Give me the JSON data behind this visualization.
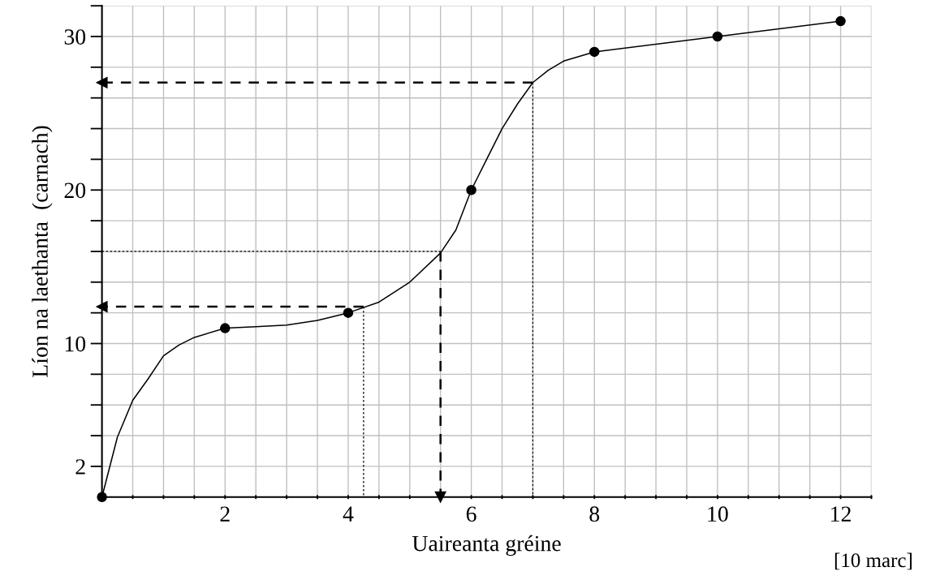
{
  "chart_data": {
    "type": "line",
    "xlabel": "Uaireanta gréine",
    "ylabel": "Líon na laethanta  (carnach)",
    "annotations": [
      "[10 marc]"
    ],
    "xlim": [
      0,
      12.5
    ],
    "ylim": [
      0,
      32
    ],
    "xticks": [
      {
        "value": 0.5,
        "label": null
      },
      {
        "value": 1,
        "label": null
      },
      {
        "value": 1.5,
        "label": null
      },
      2,
      {
        "value": 2.5,
        "label": null
      },
      {
        "value": 3,
        "label": null
      },
      {
        "value": 3.5,
        "label": null
      },
      4,
      {
        "value": 4.5,
        "label": null
      },
      {
        "value": 5,
        "label": null
      },
      {
        "value": 5.5,
        "label": null
      },
      6,
      {
        "value": 6.5,
        "label": null
      },
      {
        "value": 7,
        "label": null
      },
      {
        "value": 7.5,
        "label": null
      },
      8,
      {
        "value": 8.5,
        "label": null
      },
      {
        "value": 9,
        "label": null
      },
      {
        "value": 9.5,
        "label": null
      },
      10,
      {
        "value": 10.5,
        "label": null
      },
      {
        "value": 11,
        "label": null
      },
      {
        "value": 11.5,
        "label": null
      },
      12,
      {
        "value": 12.5,
        "label": null
      }
    ],
    "yticks": [
      2,
      {
        "value": 4,
        "label": null
      },
      {
        "value": 6,
        "label": null
      },
      {
        "value": 8,
        "label": null
      },
      10,
      {
        "value": 12,
        "label": null
      },
      {
        "value": 14,
        "label": null
      },
      {
        "value": 16,
        "label": null
      },
      {
        "value": 18,
        "label": null
      },
      20,
      {
        "value": 22,
        "label": null
      },
      {
        "value": 24,
        "label": null
      },
      {
        "value": 26,
        "label": null
      },
      {
        "value": 28,
        "label": null
      },
      30,
      {
        "value": 32,
        "label": null
      }
    ],
    "grid": true,
    "series": [
      {
        "color": "#000000",
        "marker": "none",
        "line_style": "solid",
        "x": [
          0,
          0.25,
          0.5,
          0.75,
          1,
          1.25,
          1.5,
          2,
          2.5,
          3,
          3.5,
          4,
          4.5,
          5,
          5.5,
          5.75,
          6,
          6.25,
          6.5,
          6.75,
          7,
          7.25,
          7.5,
          8,
          10,
          12
        ],
        "values": [
          0,
          3.9,
          6.3,
          7.7,
          9.2,
          9.9,
          10.4,
          11,
          11.1,
          11.2,
          11.5,
          12,
          12.7,
          14,
          15.9,
          17.4,
          20,
          22,
          24,
          25.6,
          27,
          27.8,
          28.4,
          29,
          30,
          31
        ]
      },
      {
        "type": "scatter",
        "color": "#000000",
        "marker": "circle",
        "x": [
          0,
          2,
          4,
          6,
          8,
          10,
          12
        ],
        "values": [
          0,
          11,
          12,
          20,
          29,
          30,
          31
        ]
      },
      {
        "color": "#000000",
        "marker": "triangle",
        "line_style": "dashed",
        "x": [
          7,
          0
        ],
        "values": [
          27,
          27
        ]
      },
      {
        "color": "#000000",
        "marker": "none",
        "line_style": "dotted",
        "x": [
          7,
          7
        ],
        "values": [
          27,
          0
        ]
      },
      {
        "color": "#000000",
        "marker": "triangle",
        "line_style": "dashed",
        "x": [
          4.25,
          0
        ],
        "values": [
          12.4,
          12.4
        ]
      },
      {
        "color": "#000000",
        "marker": "none",
        "line_style": "dotted",
        "x": [
          4.25,
          4.25
        ],
        "values": [
          12.4,
          0
        ]
      },
      {
        "color": "#000000",
        "marker": "none",
        "line_style": "dotted",
        "x": [
          0,
          5.5
        ],
        "values": [
          16,
          16
        ]
      },
      {
        "color": "#000000",
        "marker": "triangle",
        "line_style": "dashed",
        "x": [
          5.5,
          5.5
        ],
        "values": [
          16,
          0
        ]
      }
    ]
  }
}
